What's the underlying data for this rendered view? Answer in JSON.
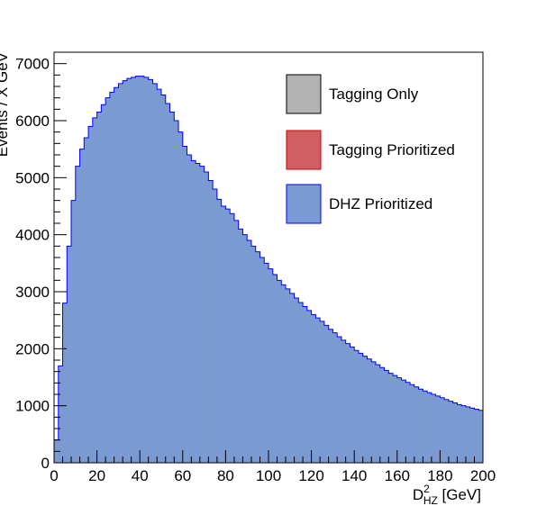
{
  "chart_data": {
    "type": "histogram",
    "title": "",
    "xlabel": {
      "base": "D",
      "sup": "2",
      "sub": "HZ",
      "unit": " [GeV]"
    },
    "ylabel": "Events / X GeV",
    "xlim": [
      0,
      200
    ],
    "ylim": [
      0,
      7200
    ],
    "xticks": [
      0,
      20,
      40,
      60,
      80,
      100,
      120,
      140,
      160,
      180,
      200
    ],
    "yticks": [
      0,
      1000,
      2000,
      3000,
      4000,
      5000,
      6000,
      7000
    ],
    "bin_width": 2,
    "grid": false,
    "legend_position": "top-right",
    "series": [
      {
        "name": "Tagging Only",
        "fill": "#b3b3b3",
        "stroke": "#000000",
        "values": []
      },
      {
        "name": "Tagging Prioritized",
        "fill": "#d05e62",
        "stroke": "#cc0000",
        "values": []
      },
      {
        "name": "DHZ Prioritized",
        "fill": "#7b9ad1",
        "stroke": "#0000ff",
        "values": [
          400,
          1700,
          2800,
          3800,
          4600,
          5200,
          5500,
          5700,
          5900,
          6050,
          6150,
          6280,
          6400,
          6500,
          6580,
          6650,
          6700,
          6740,
          6760,
          6780,
          6780,
          6760,
          6720,
          6650,
          6550,
          6450,
          6300,
          6150,
          6000,
          5800,
          5550,
          5400,
          5300,
          5250,
          5200,
          5100,
          4950,
          4800,
          4620,
          4500,
          4450,
          4370,
          4250,
          4100,
          4000,
          3900,
          3800,
          3700,
          3600,
          3500,
          3400,
          3300,
          3200,
          3120,
          3050,
          2970,
          2890,
          2810,
          2740,
          2670,
          2600,
          2540,
          2480,
          2410,
          2340,
          2280,
          2210,
          2150,
          2090,
          2030,
          1970,
          1920,
          1870,
          1820,
          1770,
          1720,
          1670,
          1620,
          1570,
          1530,
          1490,
          1450,
          1410,
          1370,
          1330,
          1290,
          1260,
          1230,
          1200,
          1170,
          1140,
          1110,
          1080,
          1050,
          1020,
          1000,
          980,
          960,
          940,
          920
        ]
      }
    ]
  }
}
